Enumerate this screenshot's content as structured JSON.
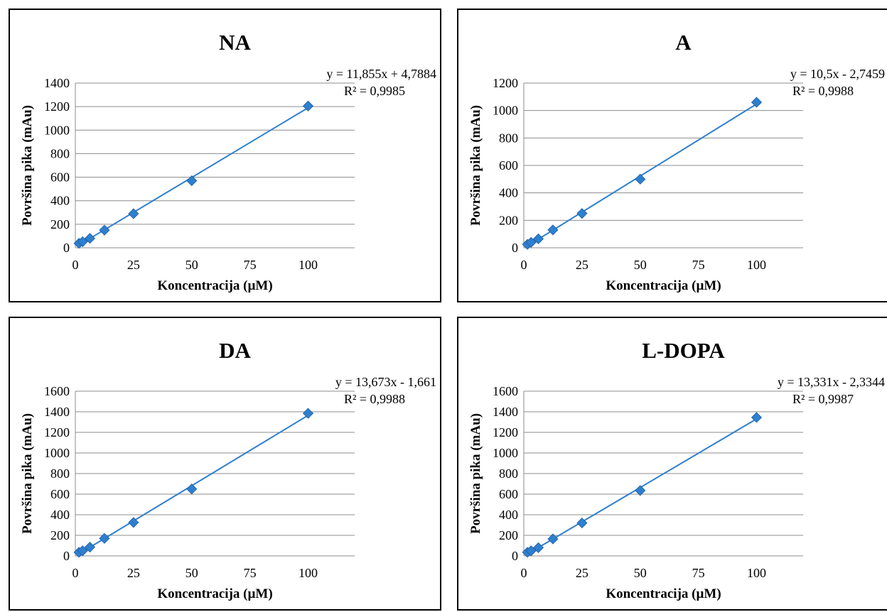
{
  "chart_data": [
    {
      "type": "scatter",
      "title": "NA",
      "xlabel": "Koncentracija (µM)",
      "ylabel": "Površina pika (mAu)",
      "xlim": [
        0,
        120
      ],
      "ylim": [
        0,
        1400
      ],
      "xticks": [
        0,
        25,
        50,
        75,
        100
      ],
      "yticks": [
        0,
        200,
        400,
        600,
        800,
        1000,
        1200,
        1400
      ],
      "grid": "horizontal",
      "points": [
        {
          "x": 1.5625,
          "y": 38
        },
        {
          "x": 3.125,
          "y": 52
        },
        {
          "x": 6.25,
          "y": 80
        },
        {
          "x": 12.5,
          "y": 150
        },
        {
          "x": 25,
          "y": 290
        },
        {
          "x": 50,
          "y": 570
        },
        {
          "x": 100,
          "y": 1205
        }
      ],
      "trendline": {
        "slope": 11.855,
        "intercept": 4.7884
      },
      "equation": "y = 11,855x + 4,7884",
      "r_squared": "R² = 0,9985",
      "color": "#2E7FD0"
    },
    {
      "type": "scatter",
      "title": "A",
      "xlabel": "Koncentracija (µM)",
      "ylabel": "Površina pika (mAu)",
      "xlim": [
        0,
        120
      ],
      "ylim": [
        0,
        1200
      ],
      "xticks": [
        0,
        25,
        50,
        75,
        100
      ],
      "yticks": [
        0,
        200,
        400,
        600,
        800,
        1000,
        1200
      ],
      "grid": "horizontal",
      "points": [
        {
          "x": 1.5625,
          "y": 25
        },
        {
          "x": 3.125,
          "y": 40
        },
        {
          "x": 6.25,
          "y": 65
        },
        {
          "x": 12.5,
          "y": 130
        },
        {
          "x": 25,
          "y": 250
        },
        {
          "x": 50,
          "y": 500
        },
        {
          "x": 100,
          "y": 1060
        }
      ],
      "trendline": {
        "slope": 10.5,
        "intercept": -2.7459
      },
      "equation": "y = 10,5x - 2,7459",
      "r_squared": "R² = 0,9988",
      "color": "#2E7FD0"
    },
    {
      "type": "scatter",
      "title": "DA",
      "xlabel": "Koncentracija (µM)",
      "ylabel": "Površina pika (mAu)",
      "xlim": [
        0,
        120
      ],
      "ylim": [
        0,
        1600
      ],
      "xticks": [
        0,
        25,
        50,
        75,
        100
      ],
      "yticks": [
        0,
        200,
        400,
        600,
        800,
        1000,
        1200,
        1400,
        1600
      ],
      "grid": "horizontal",
      "points": [
        {
          "x": 1.5625,
          "y": 35
        },
        {
          "x": 3.125,
          "y": 50
        },
        {
          "x": 6.25,
          "y": 85
        },
        {
          "x": 12.5,
          "y": 170
        },
        {
          "x": 25,
          "y": 325
        },
        {
          "x": 50,
          "y": 650
        },
        {
          "x": 100,
          "y": 1385
        }
      ],
      "trendline": {
        "slope": 13.673,
        "intercept": -1.661
      },
      "equation": "y = 13,673x - 1,661",
      "r_squared": "R² = 0,9988",
      "color": "#2E7FD0"
    },
    {
      "type": "scatter",
      "title": "L-DOPA",
      "xlabel": "Koncentracija (µM)",
      "ylabel": "Površina pika (mAu)",
      "xlim": [
        0,
        120
      ],
      "ylim": [
        0,
        1600
      ],
      "xticks": [
        0,
        25,
        50,
        75,
        100
      ],
      "yticks": [
        0,
        200,
        400,
        600,
        800,
        1000,
        1200,
        1400,
        1600
      ],
      "grid": "horizontal",
      "points": [
        {
          "x": 1.5625,
          "y": 35
        },
        {
          "x": 3.125,
          "y": 50
        },
        {
          "x": 6.25,
          "y": 80
        },
        {
          "x": 12.5,
          "y": 165
        },
        {
          "x": 25,
          "y": 320
        },
        {
          "x": 50,
          "y": 635
        },
        {
          "x": 100,
          "y": 1345
        }
      ],
      "trendline": {
        "slope": 13.331,
        "intercept": -2.3344
      },
      "equation": "y = 13,331x - 2,3344",
      "r_squared": "R² = 0,9987",
      "color": "#2E7FD0"
    }
  ]
}
